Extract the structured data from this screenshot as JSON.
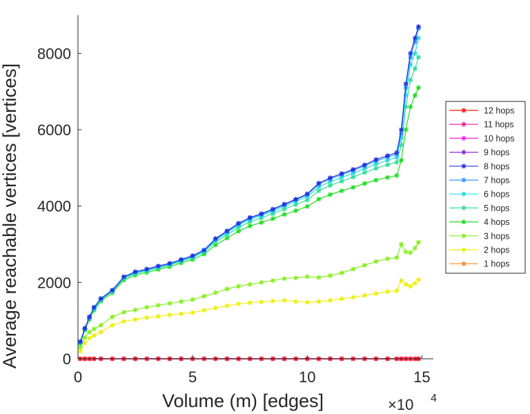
{
  "chart_data": {
    "type": "line",
    "title": "",
    "xlabel": "Volume (m) [edges]",
    "ylabel": "Average reachable vertices [vertices]",
    "x_multiplier_label": "×10",
    "x_multiplier_exponent": "4",
    "xlim": [
      0,
      15.5
    ],
    "ylim": [
      -100,
      9000
    ],
    "xticks": [
      0,
      5,
      10,
      15
    ],
    "xtick_labels": [
      "0",
      "5",
      "10",
      "15"
    ],
    "yticks": [
      0,
      2000,
      4000,
      6000,
      8000
    ],
    "ytick_labels": [
      "0",
      "2000",
      "4000",
      "6000",
      "8000"
    ],
    "grid": false,
    "legend_position": "right",
    "x": [
      0.1,
      0.3,
      0.5,
      0.7,
      1.0,
      1.5,
      2.0,
      2.5,
      3.0,
      3.5,
      4.0,
      4.5,
      5.0,
      5.5,
      6.0,
      6.5,
      7.0,
      7.5,
      8.0,
      8.5,
      9.0,
      9.5,
      10.0,
      10.5,
      11.0,
      11.5,
      12.0,
      12.5,
      13.0,
      13.5,
      13.9,
      14.1,
      14.3,
      14.5,
      14.7,
      14.85
    ],
    "series": [
      {
        "name": "12 hops",
        "color": "#ff1a1a",
        "values": [
          0,
          0,
          0,
          0,
          0,
          0,
          0,
          0,
          0,
          0,
          0,
          0,
          0,
          0,
          0,
          0,
          0,
          0,
          0,
          0,
          0,
          0,
          0,
          0,
          0,
          0,
          0,
          0,
          0,
          0,
          0,
          0,
          0,
          0,
          0,
          0
        ]
      },
      {
        "name": "11 hops",
        "color": "#ff1a8c",
        "values": [
          0,
          0,
          0,
          0,
          0,
          0,
          0,
          0,
          0,
          0,
          0,
          0,
          0,
          0,
          0,
          0,
          0,
          0,
          0,
          0,
          0,
          0,
          0,
          0,
          0,
          0,
          0,
          0,
          0,
          0,
          0,
          0,
          0,
          0,
          0,
          0
        ]
      },
      {
        "name": "10 hops",
        "color": "#ee22ee",
        "values": [
          0,
          0,
          0,
          0,
          0,
          0,
          0,
          0,
          0,
          0,
          0,
          0,
          0,
          0,
          0,
          0,
          0,
          0,
          0,
          0,
          0,
          0,
          0,
          0,
          0,
          0,
          0,
          0,
          0,
          0,
          0,
          0,
          0,
          0,
          0,
          0
        ]
      },
      {
        "name": "9 hops",
        "color": "#8a2be2",
        "values": [
          0,
          0,
          0,
          0,
          0,
          0,
          0,
          0,
          0,
          0,
          0,
          0,
          0,
          0,
          0,
          0,
          0,
          0,
          0,
          0,
          0,
          0,
          0,
          0,
          0,
          0,
          0,
          0,
          0,
          0,
          0,
          0,
          0,
          0,
          0,
          0
        ]
      },
      {
        "name": "8 hops",
        "color": "#2233dd",
        "values": [
          450,
          800,
          1100,
          1350,
          1580,
          1800,
          2150,
          2280,
          2350,
          2430,
          2500,
          2600,
          2700,
          2850,
          3150,
          3350,
          3550,
          3700,
          3800,
          3920,
          4050,
          4180,
          4320,
          4600,
          4740,
          4850,
          4960,
          5080,
          5220,
          5320,
          5400,
          6000,
          7200,
          8000,
          8400,
          8700
        ]
      },
      {
        "name": "7 hops",
        "color": "#3399ff",
        "values": [
          440,
          790,
          1090,
          1340,
          1570,
          1790,
          2140,
          2270,
          2340,
          2420,
          2490,
          2590,
          2690,
          2840,
          3130,
          3330,
          3530,
          3680,
          3780,
          3900,
          4030,
          4160,
          4300,
          4570,
          4710,
          4820,
          4930,
          5050,
          5180,
          5280,
          5360,
          5900,
          7100,
          7900,
          8300,
          8650
        ]
      },
      {
        "name": "6 hops",
        "color": "#22dddd",
        "values": [
          430,
          780,
          1080,
          1320,
          1560,
          1780,
          2120,
          2250,
          2320,
          2400,
          2470,
          2570,
          2670,
          2820,
          3100,
          3300,
          3500,
          3650,
          3750,
          3860,
          3990,
          4120,
          4250,
          4500,
          4640,
          4750,
          4860,
          4980,
          5100,
          5200,
          5280,
          5800,
          6900,
          7700,
          8000,
          8400
        ]
      },
      {
        "name": "5 hops",
        "color": "#33dd99",
        "values": [
          420,
          770,
          1060,
          1300,
          1540,
          1760,
          2100,
          2230,
          2300,
          2380,
          2450,
          2550,
          2650,
          2800,
          3060,
          3250,
          3440,
          3590,
          3690,
          3800,
          3920,
          4040,
          4160,
          4400,
          4540,
          4650,
          4760,
          4880,
          4990,
          5080,
          5150,
          5600,
          6600,
          7300,
          7600,
          7900
        ]
      },
      {
        "name": "4 hops",
        "color": "#22dd22",
        "values": [
          400,
          750,
          1030,
          1270,
          1510,
          1730,
          2060,
          2190,
          2260,
          2340,
          2410,
          2510,
          2600,
          2740,
          2980,
          3160,
          3340,
          3480,
          3570,
          3670,
          3780,
          3880,
          3990,
          4180,
          4300,
          4400,
          4490,
          4590,
          4680,
          4750,
          4800,
          5200,
          6000,
          6600,
          6900,
          7100
        ]
      },
      {
        "name": "3 hops",
        "color": "#88ee22",
        "values": [
          300,
          560,
          700,
          780,
          880,
          1100,
          1220,
          1280,
          1350,
          1400,
          1450,
          1500,
          1550,
          1640,
          1730,
          1830,
          1900,
          1950,
          2000,
          2050,
          2100,
          2120,
          2150,
          2130,
          2180,
          2250,
          2350,
          2450,
          2550,
          2620,
          2650,
          3000,
          2800,
          2780,
          2900,
          3050
        ]
      },
      {
        "name": "2 hops",
        "color": "#eeee11",
        "values": [
          200,
          420,
          540,
          610,
          700,
          880,
          980,
          1030,
          1080,
          1110,
          1150,
          1180,
          1210,
          1270,
          1330,
          1390,
          1440,
          1470,
          1490,
          1510,
          1530,
          1500,
          1480,
          1500,
          1530,
          1570,
          1610,
          1660,
          1710,
          1760,
          1780,
          2050,
          1950,
          1900,
          1980,
          2070
        ]
      },
      {
        "name": "1 hops",
        "color": "#ff8822",
        "values": [
          0,
          0,
          0,
          0,
          0,
          0,
          0,
          0,
          0,
          0,
          0,
          0,
          0,
          0,
          0,
          0,
          0,
          0,
          0,
          0,
          0,
          0,
          0,
          0,
          0,
          0,
          0,
          0,
          0,
          0,
          0,
          0,
          0,
          0,
          0,
          0
        ]
      }
    ]
  }
}
